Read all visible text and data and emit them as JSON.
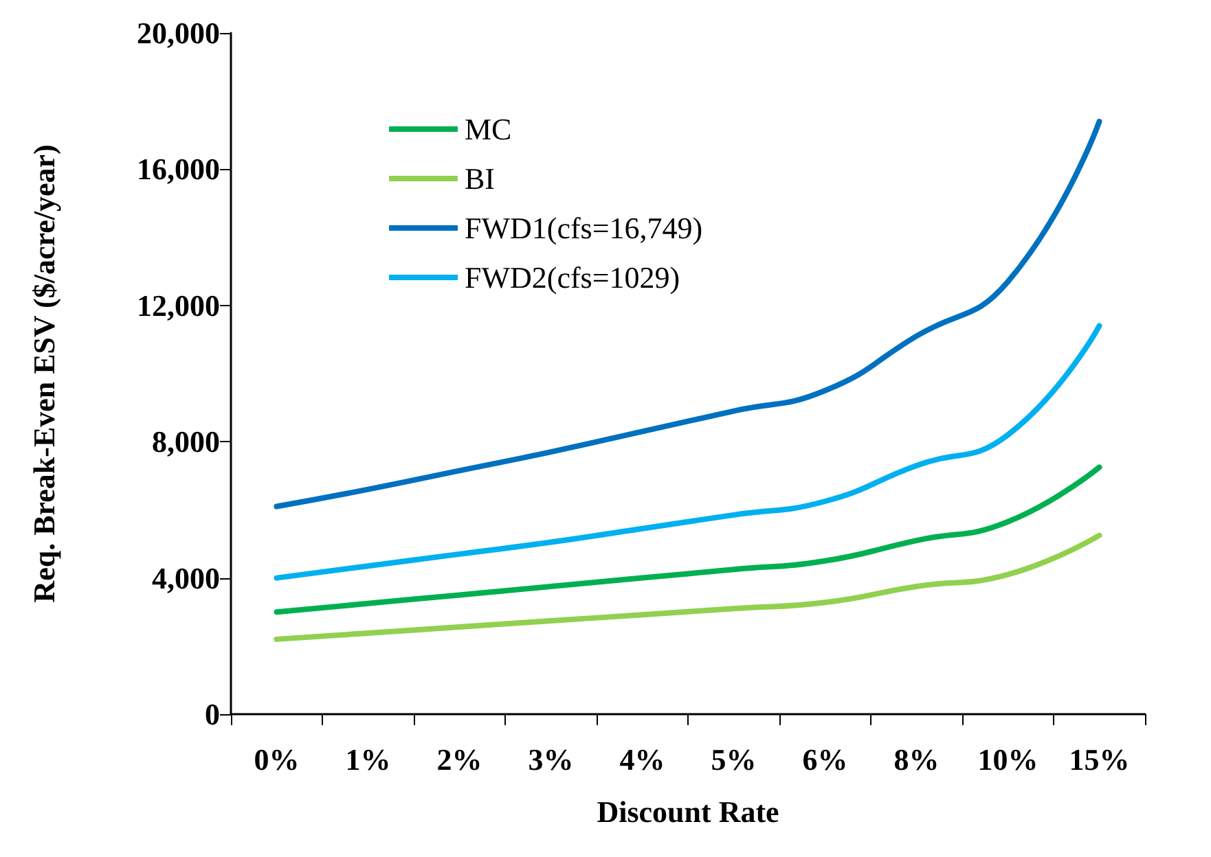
{
  "chart_data": {
    "type": "line",
    "xlabel": "Discount Rate",
    "ylabel": "Req. Break-Even ESV ($/acre/year)",
    "categories": [
      "0%",
      "1%",
      "2%",
      "3%",
      "4%",
      "5%",
      "6%",
      "8%",
      "10%",
      "15%"
    ],
    "series": [
      {
        "name": "MC",
        "color": "#00b050",
        "values": [
          3000,
          3250,
          3500,
          3750,
          4000,
          4250,
          4500,
          5100,
          5650,
          7250
        ]
      },
      {
        "name": "BI",
        "color": "#92d050",
        "values": [
          2200,
          2380,
          2560,
          2740,
          2920,
          3100,
          3280,
          3750,
          4100,
          5250
        ]
      },
      {
        "name": "FWD1(cfs=16,749)",
        "color": "#0070c0",
        "values": [
          6100,
          6600,
          7150,
          7700,
          8300,
          8900,
          9500,
          11100,
          12700,
          17400
        ]
      },
      {
        "name": "FWD2(cfs=1029)",
        "color": "#00b0f0",
        "values": [
          4000,
          4350,
          4700,
          5050,
          5450,
          5850,
          6250,
          7300,
          8200,
          11400
        ]
      }
    ],
    "ylim": [
      0,
      20000
    ],
    "yticks": [
      0,
      {
        "value": 4000,
        "label": "4,000"
      },
      {
        "value": 8000,
        "label": "8,000"
      },
      {
        "value": 12000,
        "label": "12,000"
      },
      {
        "value": 16000,
        "label": "16,000"
      },
      {
        "value": 20000,
        "label": "20,000"
      }
    ],
    "grid": false,
    "legend": "top left",
    "marker": "none",
    "line_style": "solid"
  }
}
